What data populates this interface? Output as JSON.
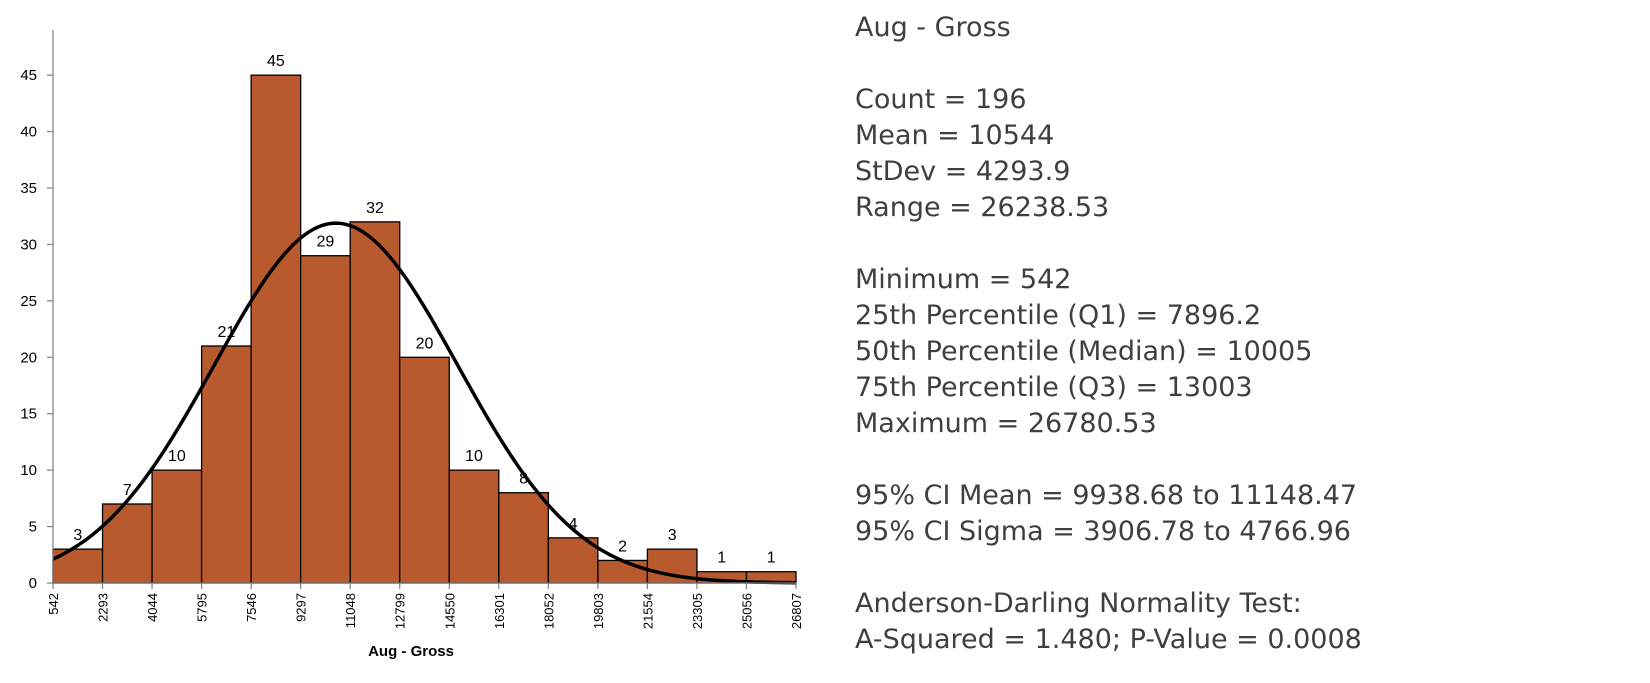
{
  "chart_data": {
    "type": "bar",
    "subtype": "histogram",
    "xlabel": "Aug - Gross",
    "ylabel": "",
    "bin_edges": [
      542,
      2293,
      4044,
      5795,
      7546,
      9297,
      11048,
      12799,
      14550,
      16301,
      18052,
      19803,
      21554,
      23305,
      25056,
      26807
    ],
    "x_tick_labels": [
      "542",
      "2293",
      "4044",
      "5795",
      "7546",
      "9297",
      "11048",
      "12799",
      "14550",
      "16301",
      "18052",
      "19803",
      "21554",
      "23305",
      "25056",
      "26807"
    ],
    "values": [
      3,
      7,
      10,
      21,
      45,
      29,
      32,
      20,
      10,
      8,
      4,
      2,
      3,
      1,
      1
    ],
    "data_labels": [
      "3",
      "7",
      "10",
      "21",
      "45",
      "29",
      "32",
      "20",
      "10",
      "8",
      "4",
      "2",
      "3",
      "1",
      "1"
    ],
    "ylim": [
      0,
      49
    ],
    "y_ticks": [
      0,
      5,
      10,
      15,
      20,
      25,
      30,
      35,
      40,
      45
    ],
    "y_tick_labels": [
      "0",
      "5",
      "10",
      "15",
      "20",
      "25",
      "30",
      "35",
      "40",
      "45"
    ],
    "normal_curve": {
      "mean": 10544,
      "stdev": 4293.9,
      "count": 196,
      "bin_width": 1751
    },
    "bar_color": "#b85a2e",
    "bar_edge_color": "#000000",
    "curve_color": "#000000",
    "grid": false,
    "legend": "none"
  },
  "stats": {
    "title": "Aug - Gross",
    "count": "Count = 196",
    "mean": "Mean = 10544",
    "stdev": "StDev = 4293.9",
    "range": "Range = 26238.53",
    "minimum": "Minimum = 542",
    "q1": "25th Percentile (Q1) = 7896.2",
    "median": "50th Percentile (Median) = 10005",
    "q3": "75th Percentile (Q3) = 13003",
    "maximum": "Maximum = 26780.53",
    "ci_mean": "95% CI Mean = 9938.68 to 11148.47",
    "ci_sigma": "95% CI Sigma = 3906.78 to 4766.96",
    "ad_title": "Anderson-Darling Normality Test:",
    "ad_result": "A-Squared = 1.480; P-Value = 0.0008"
  }
}
